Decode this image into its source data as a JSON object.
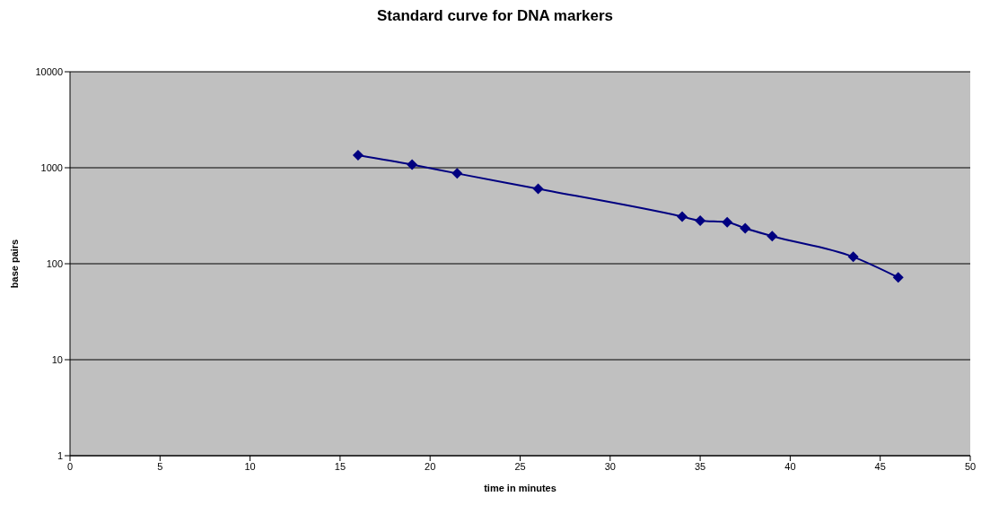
{
  "chart_data": {
    "type": "line",
    "title": "Standard curve for DNA markers",
    "xlabel": "time in minutes",
    "ylabel": "base pairs",
    "x": [
      16,
      19,
      21.5,
      26,
      34,
      35,
      36.5,
      37.5,
      39,
      43.5,
      46
    ],
    "series": [
      {
        "color": "#000080",
        "values": [
          1353,
          1078,
          872,
          603,
          310,
          281,
          271,
          234,
          194,
          118,
          72
        ]
      }
    ],
    "xlim": [
      0,
      50
    ],
    "xticks": [
      0,
      5,
      10,
      15,
      20,
      25,
      30,
      35,
      40,
      45,
      50
    ],
    "ylim": [
      1,
      10000
    ],
    "yticks": [
      1,
      10,
      100,
      1000,
      10000
    ],
    "log": "y",
    "grid": "y",
    "marker": "diamond",
    "line_style": "solid",
    "legend": false
  }
}
